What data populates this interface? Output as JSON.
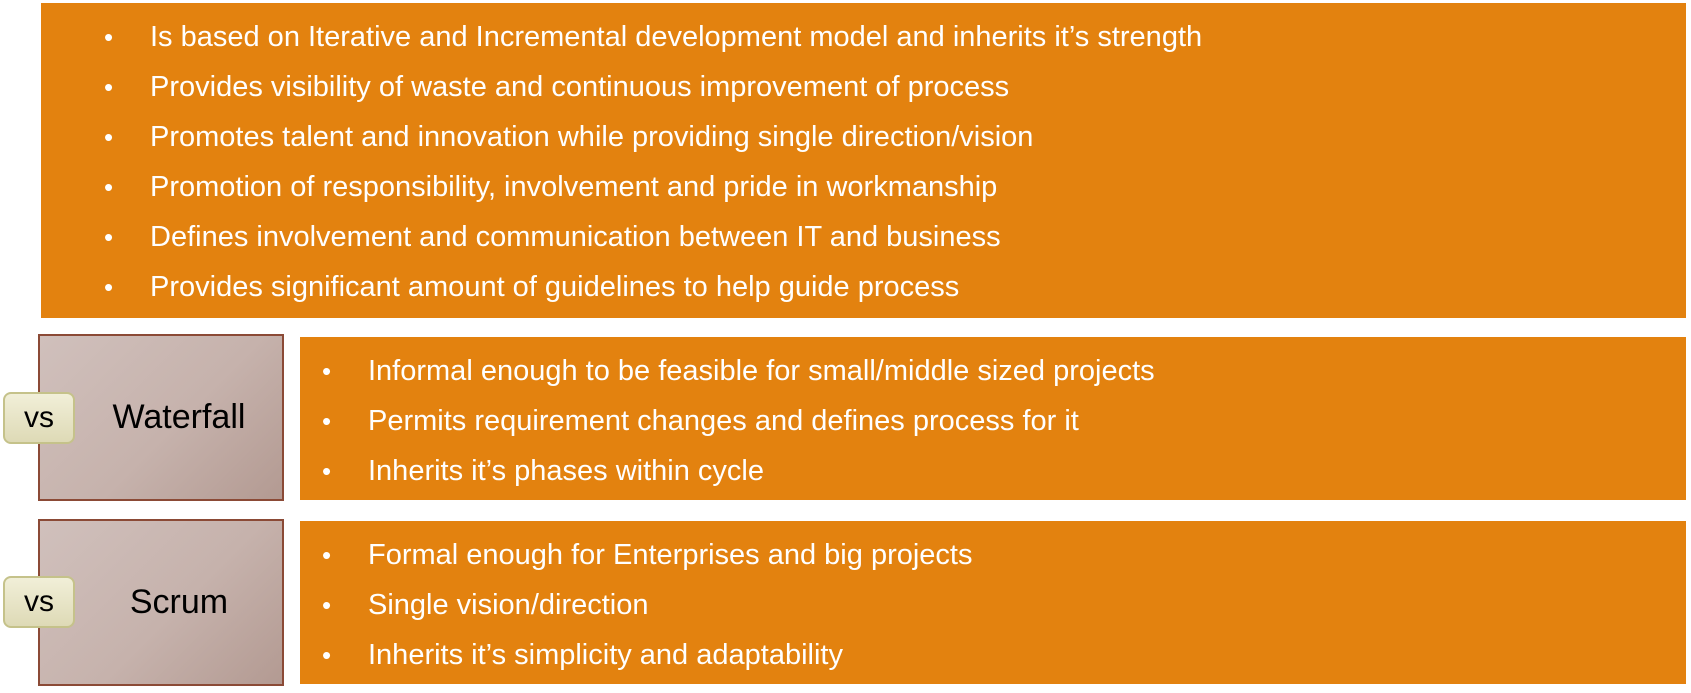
{
  "top_panel": {
    "items": [
      "Is based on Iterative and Incremental development model and inherits it’s strength",
      "Provides visibility of waste and continuous improvement of process",
      "Promotes talent and innovation while providing single direction/vision",
      "Promotion of responsibility, involvement and pride in workmanship",
      "Defines involvement and communication between IT and business",
      "Provides significant amount of guidelines to help guide process"
    ]
  },
  "comparisons": [
    {
      "badge": "vs",
      "label": "Waterfall",
      "items": [
        "Informal enough to be feasible for small/middle sized projects",
        "Permits requirement changes and defines process for it",
        "Inherits it’s phases within cycle"
      ]
    },
    {
      "badge": "vs",
      "label": "Scrum",
      "items": [
        "Formal enough for Enterprises and big projects",
        "Single vision/direction",
        "Inherits it’s simplicity and adaptability"
      ]
    }
  ],
  "colors": {
    "panel": "#E3820F",
    "label_box": "#C6B2AC",
    "label_border": "#8B4A36",
    "badge": "#E8E5C6"
  }
}
